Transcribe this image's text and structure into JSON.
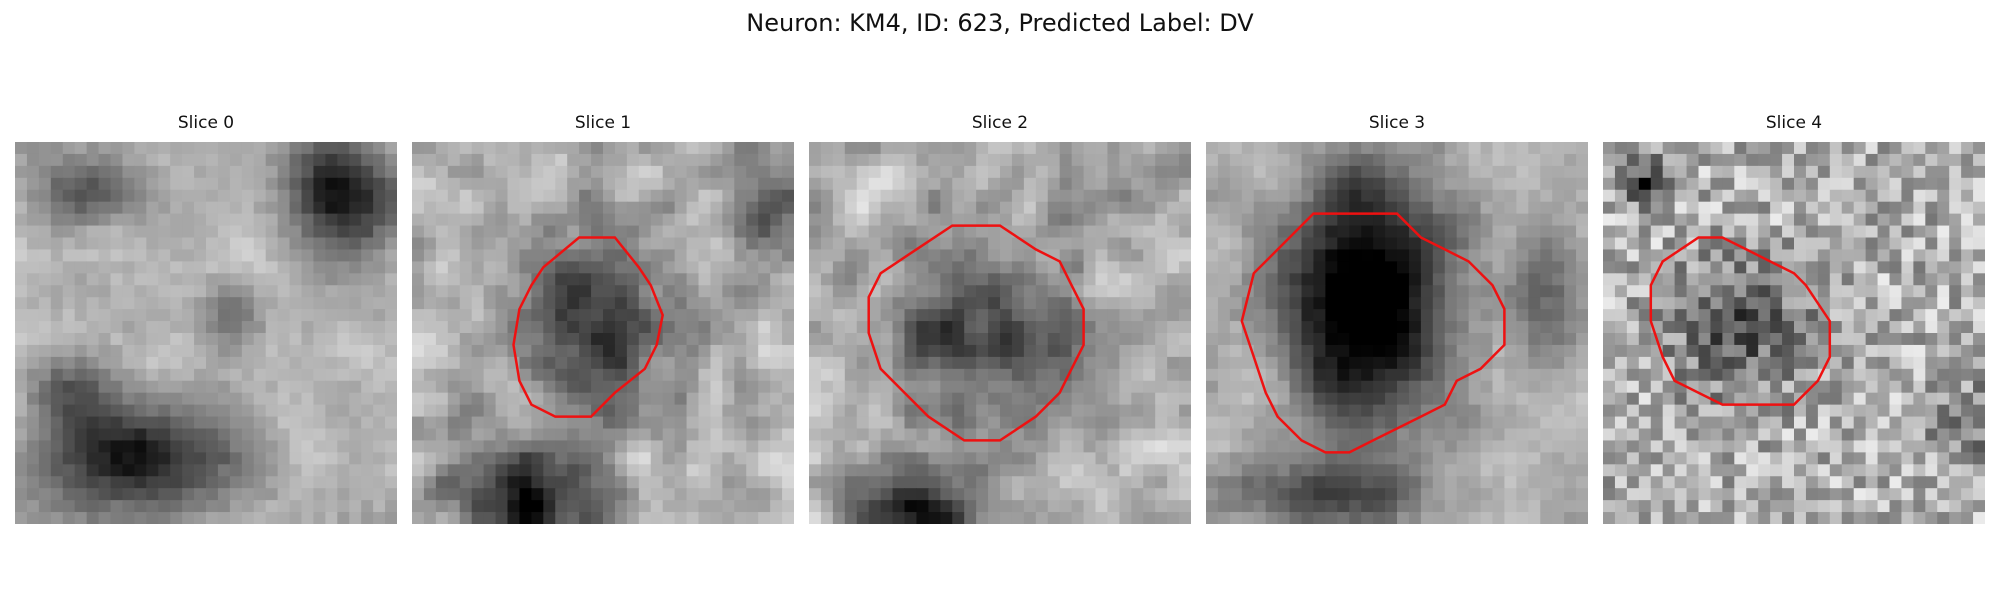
{
  "figure": {
    "title": "Neuron: KM4, ID: 623, Predicted Label: DV"
  },
  "panels": [
    {
      "title": "Slice 0",
      "has_contour": false,
      "seed": 11
    },
    {
      "title": "Slice 1",
      "has_contour": true,
      "seed": 23
    },
    {
      "title": "Slice 2",
      "has_contour": true,
      "seed": 37
    },
    {
      "title": "Slice 3",
      "has_contour": true,
      "seed": 41
    },
    {
      "title": "Slice 4",
      "has_contour": true,
      "seed": 53
    }
  ],
  "colors": {
    "contour": "#ee1111",
    "background": "#ffffff",
    "text": "#111111"
  }
}
